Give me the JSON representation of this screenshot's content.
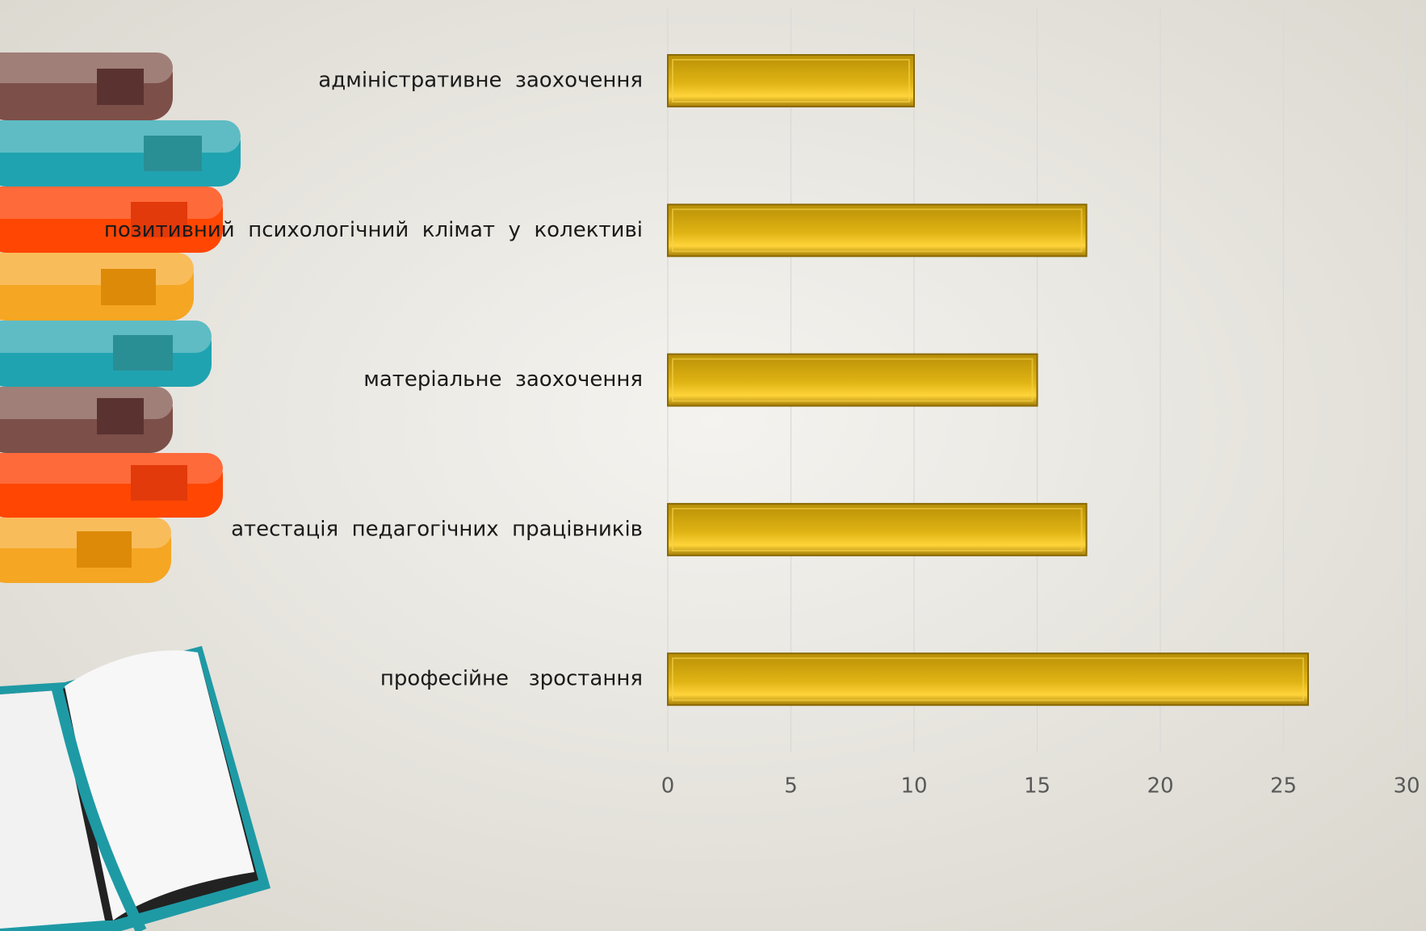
{
  "chart_data": {
    "type": "bar",
    "orientation": "horizontal",
    "categories": [
      "адміністративне  заохочення",
      "позитивний  психологічний  клімат  у  колективі",
      "матеріальне  заохочення",
      "атестація  педагогічних  працівників",
      "професійне   зростання"
    ],
    "values": [
      10,
      17,
      15,
      17,
      26
    ],
    "color": "#e0b414",
    "xlim": [
      0,
      30
    ],
    "xticks": [
      0,
      5,
      10,
      15,
      20,
      25,
      30
    ],
    "grid": true
  }
}
